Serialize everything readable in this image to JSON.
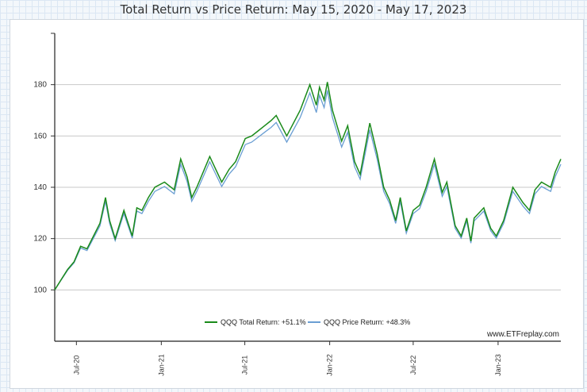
{
  "chart_data": {
    "type": "line",
    "title": "Total Return vs Price Return: May 15, 2020 - May 17, 2023",
    "xlabel": "",
    "ylabel": "",
    "ylim": [
      80,
      200
    ],
    "y_ticks": [
      100,
      120,
      140,
      160,
      180
    ],
    "x_ticks": [
      "Jul-20",
      "Jan-21",
      "Jul-21",
      "Jan-22",
      "Jul-22",
      "Jan-23"
    ],
    "x_tick_dates": [
      "2020-07-01",
      "2021-01-01",
      "2021-07-01",
      "2022-01-01",
      "2022-07-01",
      "2023-01-01"
    ],
    "x_range": [
      "2020-05-15",
      "2023-05-17"
    ],
    "grid": true,
    "legend_position": "bottom-center",
    "watermark": "www.ETFreplay.com",
    "series": [
      {
        "name": "QQQ Total Return: +51.1%",
        "color": "#1a8a1a",
        "points": [
          [
            "2020-05-15",
            100
          ],
          [
            "2020-05-29",
            104
          ],
          [
            "2020-06-12",
            108
          ],
          [
            "2020-06-26",
            111
          ],
          [
            "2020-07-10",
            117
          ],
          [
            "2020-07-24",
            116
          ],
          [
            "2020-08-07",
            121
          ],
          [
            "2020-08-21",
            126
          ],
          [
            "2020-09-02",
            136
          ],
          [
            "2020-09-11",
            127
          ],
          [
            "2020-09-23",
            120
          ],
          [
            "2020-10-12",
            131
          ],
          [
            "2020-10-30",
            121
          ],
          [
            "2020-11-09",
            132
          ],
          [
            "2020-11-20",
            131
          ],
          [
            "2020-12-04",
            136
          ],
          [
            "2020-12-18",
            140
          ],
          [
            "2021-01-08",
            142
          ],
          [
            "2021-01-29",
            139
          ],
          [
            "2021-02-12",
            151
          ],
          [
            "2021-02-26",
            144
          ],
          [
            "2021-03-08",
            136
          ],
          [
            "2021-03-19",
            140
          ],
          [
            "2021-04-16",
            152
          ],
          [
            "2021-05-12",
            142
          ],
          [
            "2021-05-28",
            147
          ],
          [
            "2021-06-11",
            150
          ],
          [
            "2021-07-02",
            159
          ],
          [
            "2021-07-16",
            160
          ],
          [
            "2021-07-30",
            162
          ],
          [
            "2021-08-13",
            164
          ],
          [
            "2021-08-27",
            166
          ],
          [
            "2021-09-07",
            168
          ],
          [
            "2021-09-30",
            160
          ],
          [
            "2021-10-29",
            170
          ],
          [
            "2021-11-19",
            180
          ],
          [
            "2021-12-03",
            172
          ],
          [
            "2021-12-10",
            179
          ],
          [
            "2021-12-20",
            174
          ],
          [
            "2021-12-27",
            181
          ],
          [
            "2022-01-07",
            170
          ],
          [
            "2022-01-27",
            158
          ],
          [
            "2022-02-09",
            164
          ],
          [
            "2022-02-24",
            150
          ],
          [
            "2022-03-08",
            145
          ],
          [
            "2022-03-29",
            165
          ],
          [
            "2022-04-14",
            153
          ],
          [
            "2022-04-28",
            140
          ],
          [
            "2022-05-11",
            135
          ],
          [
            "2022-05-24",
            127
          ],
          [
            "2022-06-03",
            136
          ],
          [
            "2022-06-16",
            123
          ],
          [
            "2022-07-01",
            131
          ],
          [
            "2022-07-15",
            133
          ],
          [
            "2022-07-29",
            140
          ],
          [
            "2022-08-16",
            151
          ],
          [
            "2022-09-02",
            138
          ],
          [
            "2022-09-12",
            142
          ],
          [
            "2022-09-30",
            125
          ],
          [
            "2022-10-13",
            121
          ],
          [
            "2022-10-25",
            128
          ],
          [
            "2022-11-03",
            119
          ],
          [
            "2022-11-10",
            128
          ],
          [
            "2022-12-01",
            132
          ],
          [
            "2022-12-16",
            124
          ],
          [
            "2022-12-28",
            121
          ],
          [
            "2023-01-13",
            127
          ],
          [
            "2023-02-02",
            140
          ],
          [
            "2023-02-24",
            134
          ],
          [
            "2023-03-10",
            131
          ],
          [
            "2023-03-22",
            139
          ],
          [
            "2023-04-05",
            142
          ],
          [
            "2023-04-25",
            140
          ],
          [
            "2023-05-05",
            146
          ],
          [
            "2023-05-17",
            151
          ]
        ]
      },
      {
        "name": "QQQ Price Return: +48.3%",
        "color": "#6a9ed3",
        "points": []
      }
    ]
  }
}
